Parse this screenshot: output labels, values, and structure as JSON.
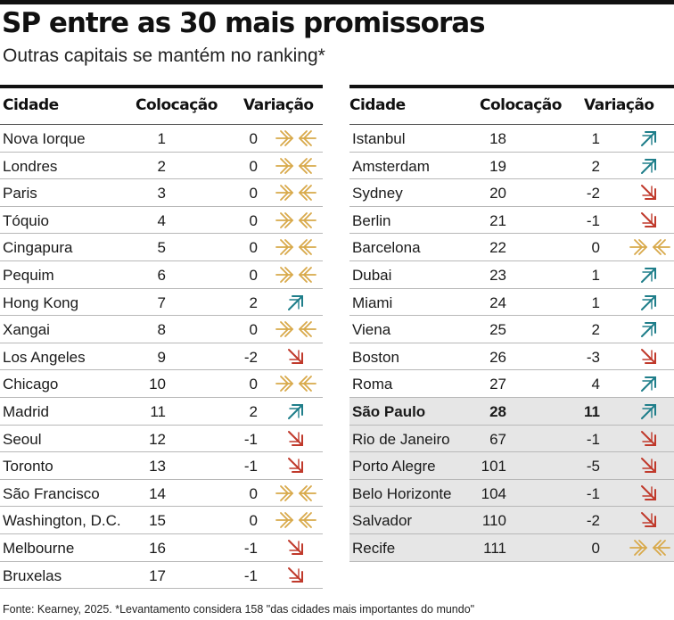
{
  "title": "SP entre as 30 mais promissoras",
  "subtitle": "Outras capitais se mantém no ranking*",
  "columns": {
    "city": "Cidade",
    "position": "Colocação",
    "variation": "Variação"
  },
  "colors": {
    "stable": "#d8a94a",
    "up": "#1f7e8a",
    "down": "#c0392b",
    "highlight_bg": "#e6e6e6"
  },
  "icons": {
    "stable": "converging-arrows-icon",
    "up": "arrow-up-right-icon",
    "down": "arrow-down-right-icon"
  },
  "left_rows": [
    {
      "city": "Nova Iorque",
      "position": "1",
      "variation": "0",
      "trend": "stable"
    },
    {
      "city": "Londres",
      "position": "2",
      "variation": "0",
      "trend": "stable"
    },
    {
      "city": "Paris",
      "position": "3",
      "variation": "0",
      "trend": "stable"
    },
    {
      "city": "Tóquio",
      "position": "4",
      "variation": "0",
      "trend": "stable"
    },
    {
      "city": "Cingapura",
      "position": "5",
      "variation": "0",
      "trend": "stable"
    },
    {
      "city": "Pequim",
      "position": "6",
      "variation": "0",
      "trend": "stable"
    },
    {
      "city": "Hong Kong",
      "position": "7",
      "variation": "2",
      "trend": "up"
    },
    {
      "city": "Xangai",
      "position": "8",
      "variation": "0",
      "trend": "stable"
    },
    {
      "city": "Los Angeles",
      "position": "9",
      "variation": "-2",
      "trend": "down"
    },
    {
      "city": "Chicago",
      "position": "10",
      "variation": "0",
      "trend": "stable"
    },
    {
      "city": "Madrid",
      "position": "11",
      "variation": "2",
      "trend": "up"
    },
    {
      "city": "Seoul",
      "position": "12",
      "variation": "-1",
      "trend": "down"
    },
    {
      "city": "Toronto",
      "position": "13",
      "variation": "-1",
      "trend": "down"
    },
    {
      "city": "São Francisco",
      "position": "14",
      "variation": "0",
      "trend": "stable"
    },
    {
      "city": "Washington, D.C.",
      "position": "15",
      "variation": "0",
      "trend": "stable"
    },
    {
      "city": "Melbourne",
      "position": "16",
      "variation": "-1",
      "trend": "down"
    },
    {
      "city": "Bruxelas",
      "position": "17",
      "variation": "-1",
      "trend": "down"
    }
  ],
  "right_rows": [
    {
      "city": "Istanbul",
      "position": "18",
      "variation": "1",
      "trend": "up"
    },
    {
      "city": "Amsterdam",
      "position": "19",
      "variation": "2",
      "trend": "up"
    },
    {
      "city": "Sydney",
      "position": "20",
      "variation": "-2",
      "trend": "down"
    },
    {
      "city": "Berlin",
      "position": "21",
      "variation": "-1",
      "trend": "down"
    },
    {
      "city": "Barcelona",
      "position": "22",
      "variation": "0",
      "trend": "stable"
    },
    {
      "city": "Dubai",
      "position": "23",
      "variation": "1",
      "trend": "up"
    },
    {
      "city": "Miami",
      "position": "24",
      "variation": "1",
      "trend": "up"
    },
    {
      "city": "Viena",
      "position": "25",
      "variation": "2",
      "trend": "up"
    },
    {
      "city": "Boston",
      "position": "26",
      "variation": "-3",
      "trend": "down"
    },
    {
      "city": "Roma",
      "position": "27",
      "variation": "4",
      "trend": "up"
    },
    {
      "city": "São Paulo",
      "position": "28",
      "variation": "11",
      "trend": "up",
      "highlight": true
    },
    {
      "city": "Rio de Janeiro",
      "position": "67",
      "variation": "-1",
      "trend": "down",
      "shaded": true
    },
    {
      "city": "Porto Alegre",
      "position": "101",
      "variation": "-5",
      "trend": "down",
      "shaded": true
    },
    {
      "city": "Belo Horizonte",
      "position": "104",
      "variation": "-1",
      "trend": "down",
      "shaded": true
    },
    {
      "city": "Salvador",
      "position": "110",
      "variation": "-2",
      "trend": "down",
      "shaded": true
    },
    {
      "city": "Recife",
      "position": "111",
      "variation": "0",
      "trend": "stable",
      "shaded": true
    }
  ],
  "source": "Fonte: Kearney, 2025. *Levantamento considera 158 \"das cidades mais importantes do mundo\""
}
